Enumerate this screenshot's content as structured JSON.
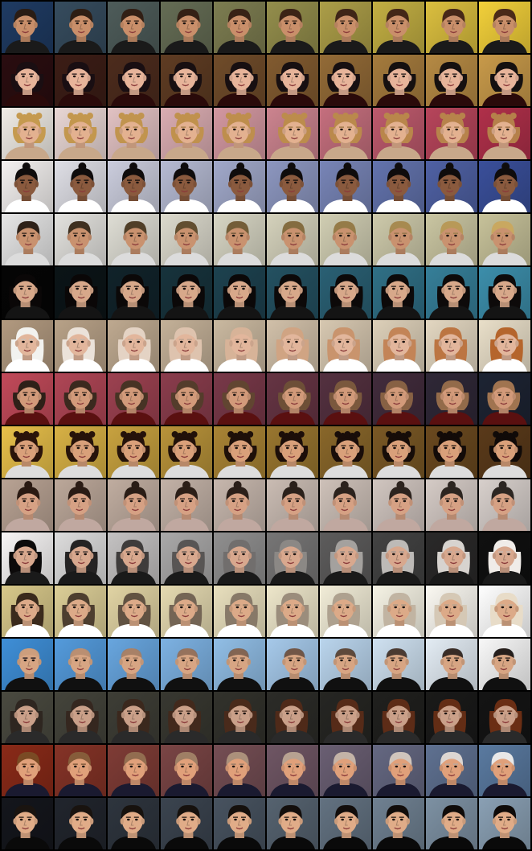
{
  "grid": {
    "columns": 10,
    "rows": [
      {
        "bg_start": "#1f3b63",
        "bg_end": "#f2d03a",
        "skin": "#c98f6a",
        "hair_start": "#2a1c14",
        "hair_end": "#4a2a18",
        "shirt": "#1a1a1a",
        "style": "short"
      },
      {
        "bg_start": "#2a0d10",
        "bg_end": "#c89a4a",
        "skin": "#e7b49a",
        "hair_start": "#1a0e12",
        "hair_end": "#141010",
        "shirt": "#2a0a0a",
        "style": "bob"
      },
      {
        "bg_start": "#f0ece6",
        "bg_end": "#b0304a",
        "skin": "#e3b190",
        "hair_start": "#c59a4f",
        "hair_end": "#b5804a",
        "shirt": "#c8a88a",
        "style": "curly"
      },
      {
        "bg_start": "#f4f1f0",
        "bg_end": "#3a4f9a",
        "skin": "#8a5a3e",
        "hair_start": "#0f0c0c",
        "hair_end": "#0f0c0c",
        "shirt": "#ffffff",
        "style": "bun"
      },
      {
        "bg_start": "#e6e6e6",
        "bg_end": "#c7c29a",
        "skin": "#c9926f",
        "hair_start": "#2e2118",
        "hair_end": "#c9a860",
        "shirt": "#dcdcdc",
        "style": "short"
      },
      {
        "bg_start": "#050505",
        "bg_end": "#3c8eab",
        "skin": "#d7a88a",
        "hair_start": "#0a0707",
        "hair_end": "#0d0a0a",
        "shirt": "#141414",
        "style": "long"
      },
      {
        "bg_start": "#b29a80",
        "bg_end": "#e9dfc9",
        "skin": "#e2b69c",
        "hair_start": "#f2f2ef",
        "hair_end": "#b5652c",
        "shirt": "#ffffff",
        "style": "long"
      },
      {
        "bg_start": "#c24a5a",
        "bg_end": "#1d2433",
        "skin": "#d29a7a",
        "hair_start": "#2e2018",
        "hair_end": "#a07450",
        "shirt": "#5a1010",
        "style": "bob"
      },
      {
        "bg_start": "#e8c04a",
        "bg_end": "#5a3a1a",
        "skin": "#d9a07a",
        "hair_start": "#2a140a",
        "hair_end": "#100a08",
        "shirt": "#dddddd",
        "style": "curly"
      },
      {
        "bg_start": "#b9a394",
        "bg_end": "#d8d0cc",
        "skin": "#d6a184",
        "hair_start": "#2a1a12",
        "hair_end": "#2c2622",
        "shirt": "#c0a8a0",
        "style": "bun"
      },
      {
        "bg_start": "#f7f5f5",
        "bg_end": "#101010",
        "skin": "#d8a88e",
        "hair_start": "#0c0a0a",
        "hair_end": "#f0ece8",
        "shirt": "#1a1a1a",
        "style": "long"
      },
      {
        "bg_start": "#d8c88a",
        "bg_end": "#ffffff",
        "skin": "#dcaa88",
        "hair_start": "#3a2a1c",
        "hair_end": "#e8dcc8",
        "shirt": "#ffffff",
        "style": "long"
      },
      {
        "bg_start": "#3f8fd8",
        "bg_end": "#f8f8f8",
        "skin": "#d7a583",
        "hair_start": "#d7a583",
        "hair_end": "#141010",
        "shirt": "#101010",
        "style": "bald"
      },
      {
        "bg_start": "#4a4a40",
        "bg_end": "#141414",
        "skin": "#caa089",
        "hair_start": "#2e2620",
        "hair_end": "#6a2e14",
        "shirt": "#2a2a2a",
        "style": "long"
      },
      {
        "bg_start": "#8a2a18",
        "bg_end": "#5a7aa0",
        "skin": "#e0a07a",
        "hair_start": "#7a4a24",
        "hair_end": "#e8e8e8",
        "shirt": "#1a1a30",
        "style": "short"
      },
      {
        "bg_start": "#14161c",
        "bg_end": "#8aa0b4",
        "skin": "#e0ac88",
        "hair_start": "#1a1410",
        "hair_end": "#0e0a08",
        "shirt": "#0a0a0a",
        "style": "short"
      }
    ]
  }
}
